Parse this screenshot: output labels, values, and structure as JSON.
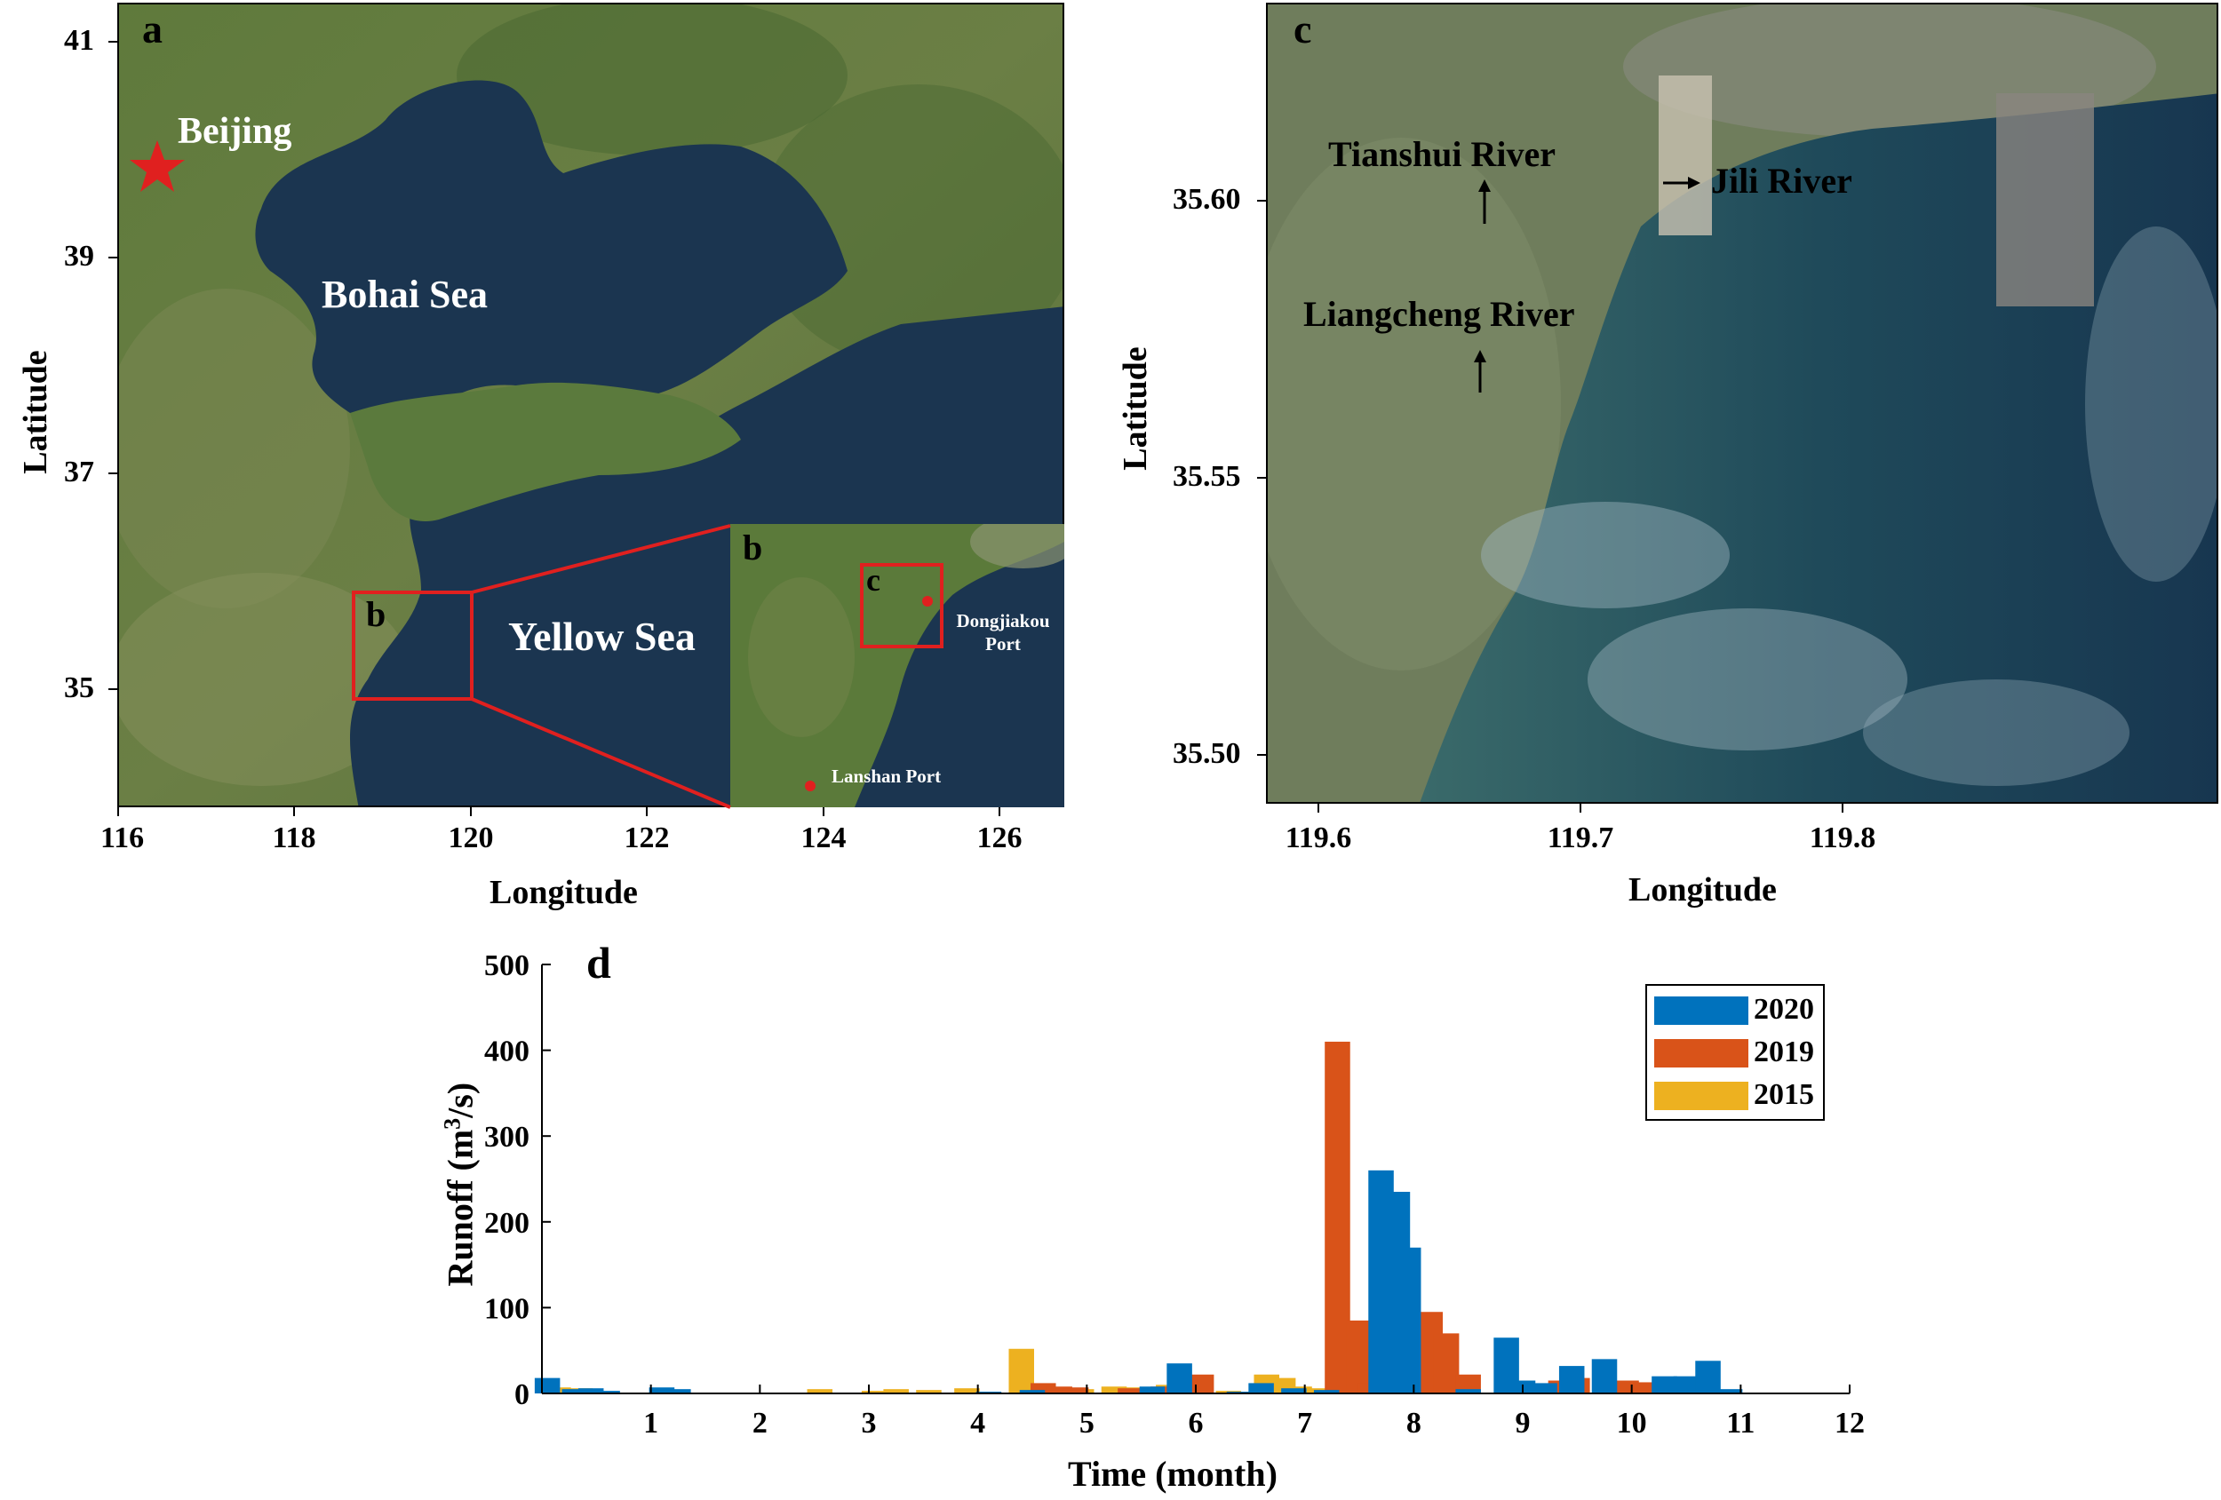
{
  "panel_a": {
    "letter": "a",
    "y_ticks": [
      "41",
      "39",
      "37",
      "35"
    ],
    "x_ticks": [
      "116",
      "118",
      "120",
      "122",
      "124",
      "126"
    ],
    "ylabel": "Latitude",
    "xlabel": "Longitude",
    "labels": {
      "beijing": "Beijing",
      "bohai": "Bohai Sea",
      "yellow": "Yellow Sea",
      "box_b": "b"
    },
    "inset": {
      "letter": "b",
      "box_c": "c",
      "dongjiakou": "Dongjiakou Port",
      "lanshan": "Lanshan Port"
    }
  },
  "panel_c": {
    "letter": "c",
    "y_ticks": [
      "35.60",
      "35.55",
      "35.50"
    ],
    "x_ticks": [
      "119.6",
      "119.7",
      "119.8"
    ],
    "ylabel": "Latitude",
    "xlabel": "Longitude",
    "rivers": {
      "tianshui": "Tianshui River",
      "jili": "Jili River",
      "liangcheng": "Liangcheng River"
    }
  },
  "chart_data": {
    "type": "bar",
    "panel_letter": "d",
    "xlabel": "Time (month)",
    "ylabel_main": "Runoff (m",
    "ylabel_sup": "3",
    "ylabel_end": "/s)",
    "ylim": [
      0,
      500
    ],
    "xlim": [
      0,
      12
    ],
    "y_ticks": [
      "0",
      "100",
      "200",
      "300",
      "400",
      "500"
    ],
    "x_ticks": [
      "1",
      "2",
      "3",
      "4",
      "5",
      "6",
      "7",
      "8",
      "9",
      "10",
      "11",
      "12"
    ],
    "legend_position": "top-right",
    "series": [
      {
        "name": "2020",
        "color": "#0072BD",
        "points": [
          [
            0.05,
            18
          ],
          [
            0.3,
            5
          ],
          [
            0.45,
            6
          ],
          [
            0.6,
            3
          ],
          [
            1.1,
            7
          ],
          [
            1.25,
            5
          ],
          [
            4.1,
            2
          ],
          [
            4.5,
            4
          ],
          [
            5.6,
            8
          ],
          [
            5.85,
            35
          ],
          [
            6.4,
            2
          ],
          [
            6.6,
            12
          ],
          [
            6.9,
            6
          ],
          [
            7.2,
            4
          ],
          [
            7.7,
            260
          ],
          [
            7.85,
            235
          ],
          [
            7.95,
            170
          ],
          [
            8.5,
            5
          ],
          [
            8.85,
            65
          ],
          [
            9.0,
            15
          ],
          [
            9.2,
            12
          ],
          [
            9.45,
            32
          ],
          [
            9.75,
            40
          ],
          [
            10.3,
            20
          ],
          [
            10.5,
            20
          ],
          [
            10.7,
            38
          ],
          [
            10.9,
            5
          ]
        ]
      },
      {
        "name": "2019",
        "color": "#D95319",
        "points": [
          [
            4.6,
            12
          ],
          [
            4.75,
            8
          ],
          [
            4.9,
            7
          ],
          [
            5.4,
            6
          ],
          [
            5.7,
            8
          ],
          [
            6.05,
            22
          ],
          [
            7.3,
            410
          ],
          [
            7.5,
            85
          ],
          [
            7.6,
            12
          ],
          [
            8.15,
            95
          ],
          [
            8.3,
            70
          ],
          [
            8.5,
            22
          ],
          [
            9.5,
            18
          ],
          [
            9.35,
            15
          ],
          [
            9.95,
            15
          ],
          [
            10.1,
            13
          ],
          [
            10.5,
            5
          ]
        ]
      },
      {
        "name": "2015",
        "color": "#EDB120",
        "points": [
          [
            0.15,
            7
          ],
          [
            0.35,
            6
          ],
          [
            2.55,
            5
          ],
          [
            3.05,
            3
          ],
          [
            3.25,
            5
          ],
          [
            3.55,
            4
          ],
          [
            3.9,
            6
          ],
          [
            4.4,
            52
          ],
          [
            4.6,
            7
          ],
          [
            4.95,
            5
          ],
          [
            5.25,
            8
          ],
          [
            5.45,
            7
          ],
          [
            5.75,
            10
          ],
          [
            6.3,
            3
          ],
          [
            6.65,
            22
          ],
          [
            6.8,
            18
          ],
          [
            6.95,
            8
          ],
          [
            7.15,
            6
          ],
          [
            7.35,
            6
          ],
          [
            7.5,
            6
          ],
          [
            7.7,
            15
          ],
          [
            8.1,
            3
          ]
        ]
      }
    ]
  }
}
